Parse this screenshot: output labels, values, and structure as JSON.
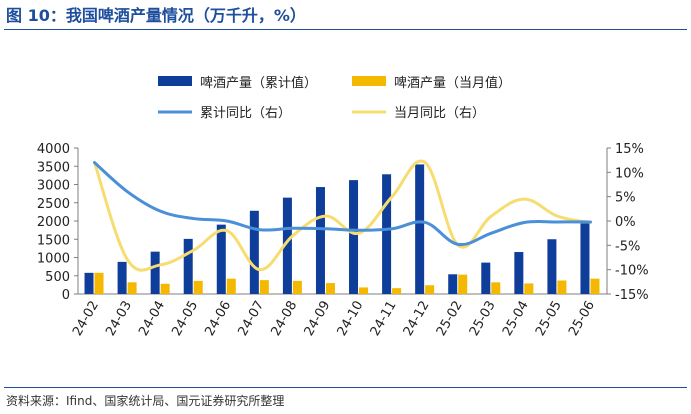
{
  "header": {
    "title": "图 10：我国啤酒产量情况（万千升，%）"
  },
  "footer": {
    "source": "资料来源：Ifind、国家统计局、国元证券研究所整理"
  },
  "chart_data": {
    "type": "bar",
    "categories": [
      "24-02",
      "24-03",
      "24-04",
      "24-05",
      "24-06",
      "24-07",
      "24-08",
      "24-09",
      "24-10",
      "24-11",
      "24-12",
      "25-02",
      "25-03",
      "25-04",
      "25-05",
      "25-06"
    ],
    "series": [
      {
        "name": "啤酒产量（累计值）",
        "kind": "bar",
        "axis": "left",
        "color": "#0f3d9a",
        "values": [
          580,
          880,
          1160,
          1510,
          1900,
          2280,
          2640,
          2930,
          3120,
          3280,
          3550,
          540,
          860,
          1150,
          1500,
          1930
        ]
      },
      {
        "name": "啤酒产量（当月值）",
        "kind": "bar",
        "axis": "left",
        "color": "#f5b800",
        "values": [
          580,
          320,
          280,
          360,
          420,
          380,
          360,
          300,
          180,
          160,
          240,
          530,
          320,
          290,
          370,
          420
        ]
      },
      {
        "name": "累计同比（右）",
        "kind": "line",
        "axis": "right",
        "color": "#4a8fd8",
        "values": [
          12,
          6,
          2,
          0.5,
          0,
          -1.8,
          -1.5,
          -1.6,
          -1.9,
          -1.6,
          -0.3,
          -4.8,
          -2.5,
          -0.3,
          -0.2,
          -0.2
        ]
      },
      {
        "name": "当月同比（右）",
        "kind": "line",
        "axis": "right",
        "color": "#f7dc6f",
        "values": [
          12,
          -8,
          -9,
          -6,
          -2,
          -10,
          -3,
          1,
          -2.5,
          5,
          12,
          -5,
          1,
          4.5,
          1,
          -0.3
        ]
      }
    ],
    "y_left": {
      "min": 0,
      "max": 4000,
      "step": 500,
      "ticks": [
        "0",
        "500",
        "1000",
        "1500",
        "2000",
        "2500",
        "3000",
        "3500",
        "4000"
      ]
    },
    "y_right": {
      "min": -15,
      "max": 15,
      "step": 5,
      "ticks": [
        "-15%",
        "-10%",
        "-5%",
        "0%",
        "5%",
        "10%",
        "15%"
      ]
    },
    "grid": false,
    "legend_position": "top"
  }
}
